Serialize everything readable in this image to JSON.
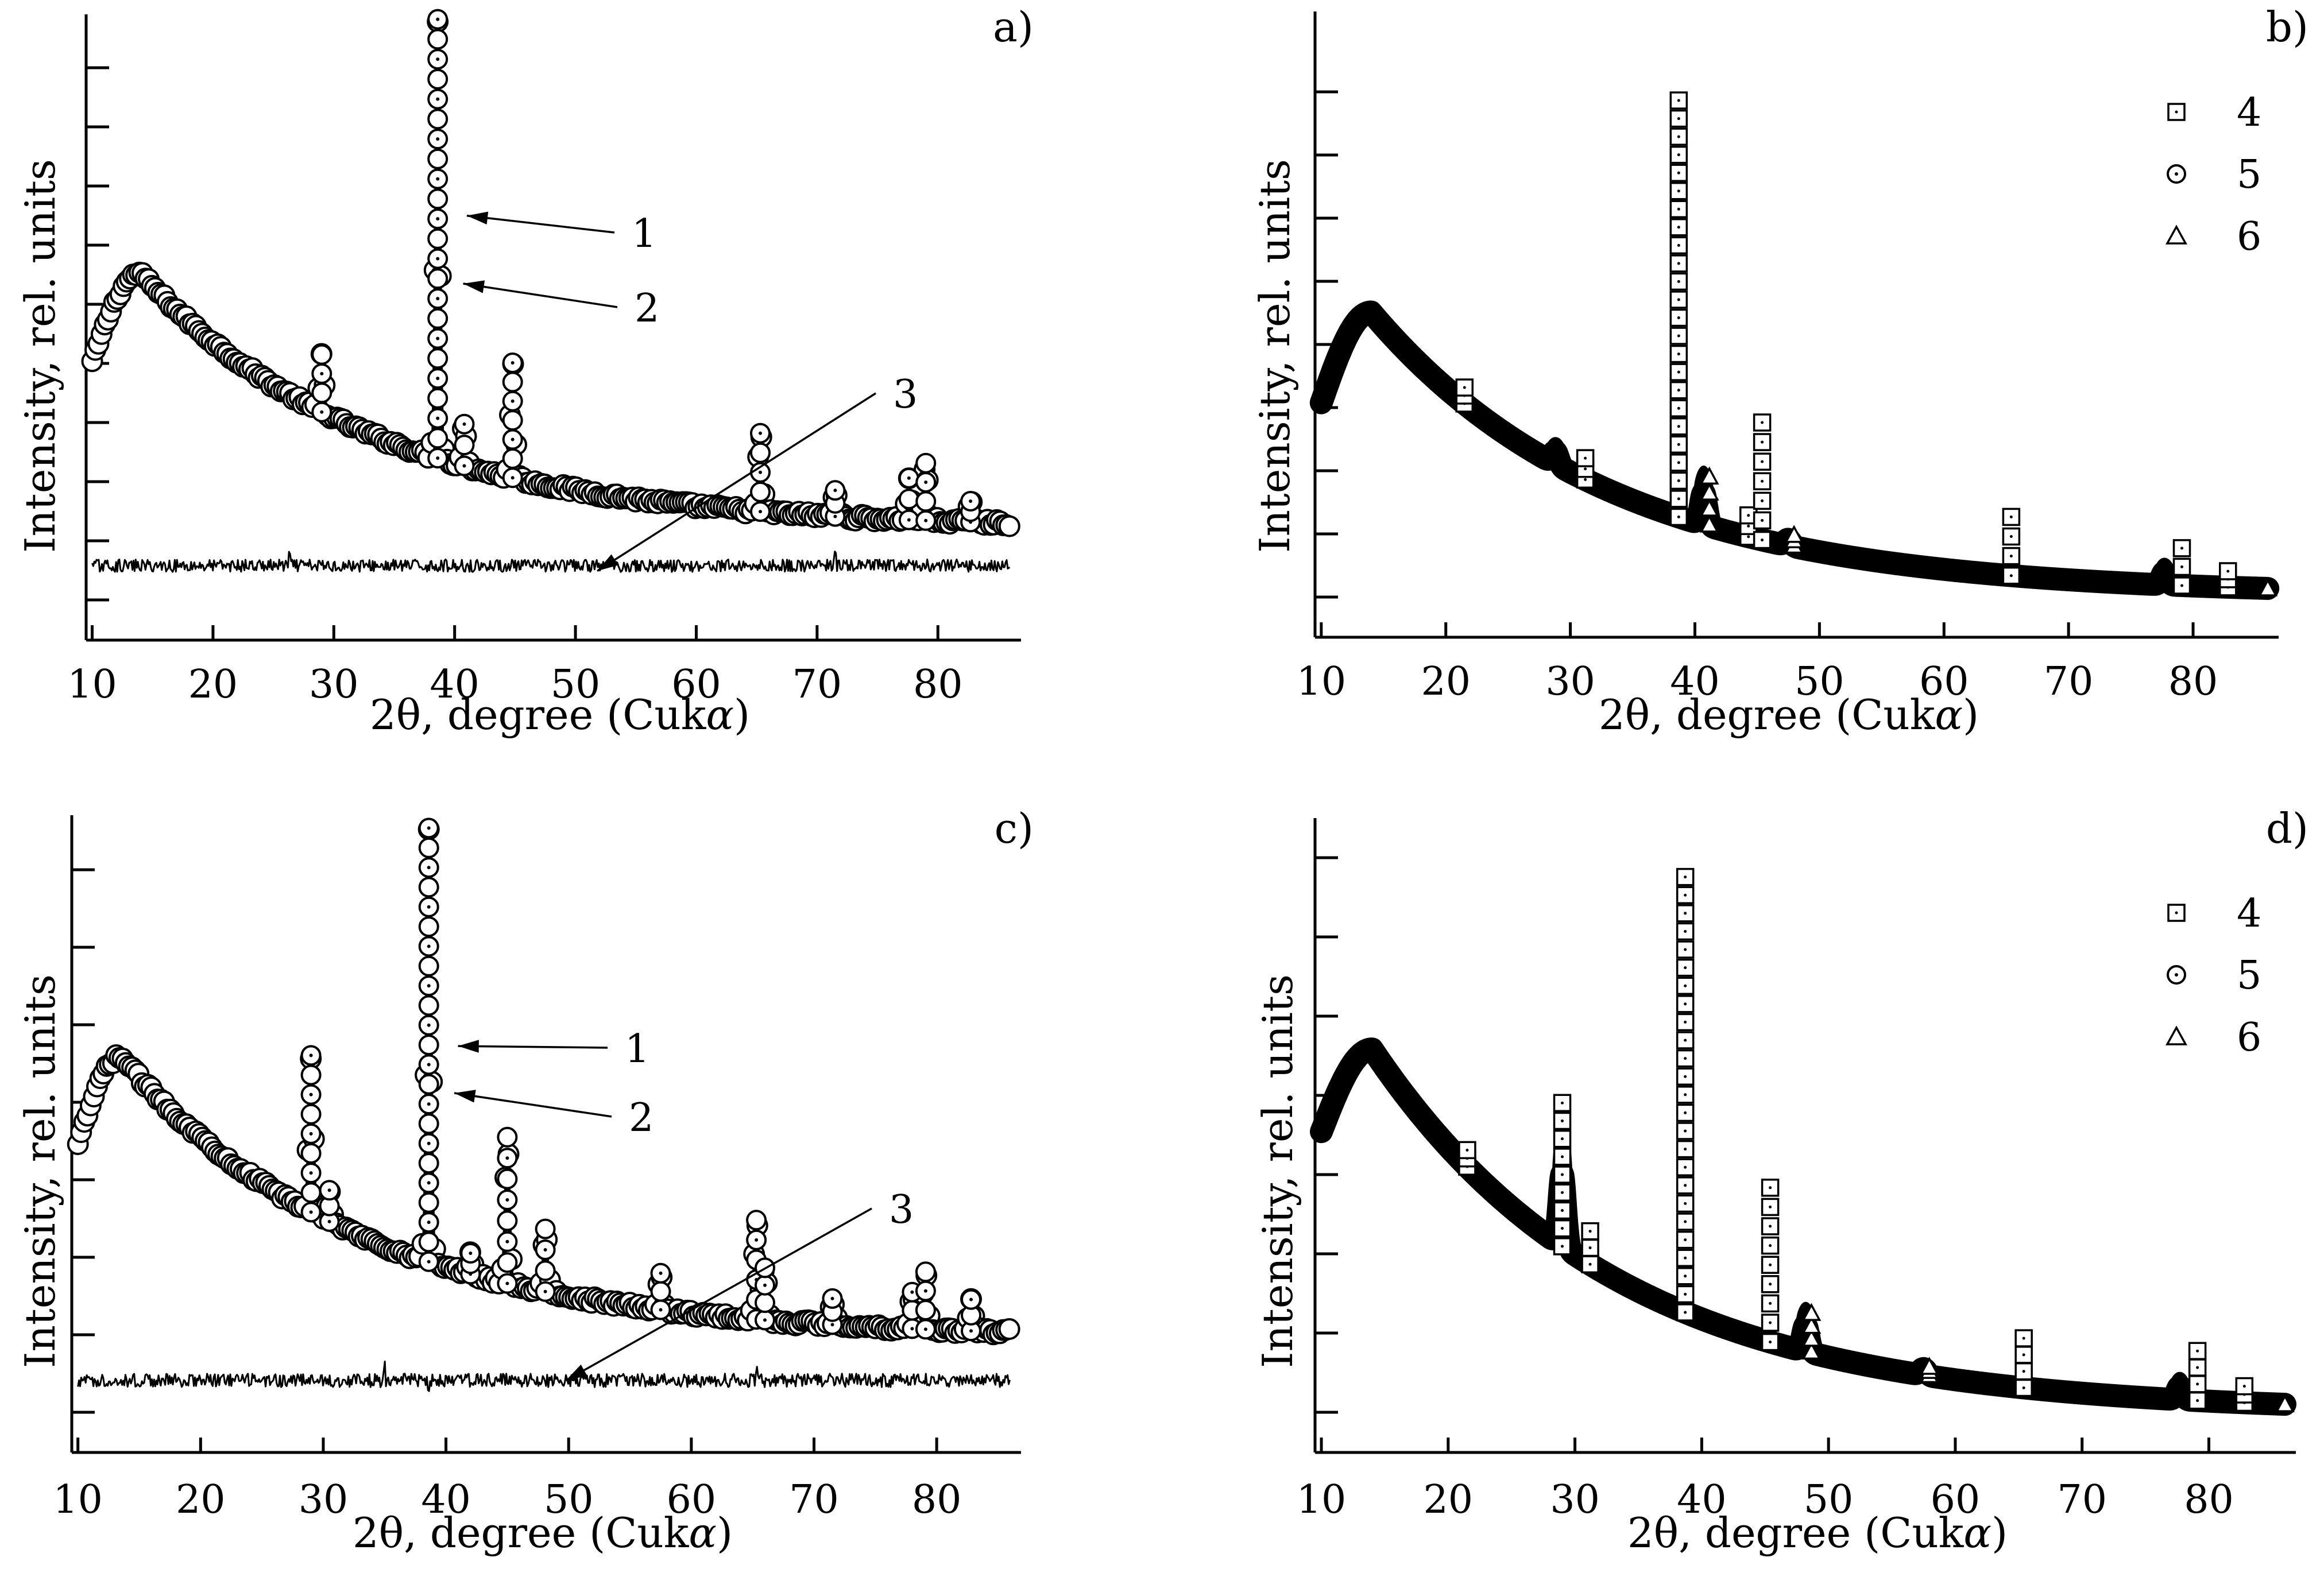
{
  "figure": {
    "panels": [
      {
        "id": "a",
        "label": "a)",
        "xlabel_prefix": "2θ, degree (Cuk",
        "xlabel_symbol": "α",
        "xlabel_suffix": ")",
        "ylabel": "Intensity, rel. units",
        "xticks": [
          "10",
          "20",
          "30",
          "40",
          "50",
          "60",
          "70",
          "80"
        ],
        "legend": [],
        "callouts": [
          {
            "text": "1",
            "target_series": "1",
            "x": 39.2,
            "y": 0.73
          },
          {
            "text": "2",
            "target_series": "2",
            "x": 38.9,
            "y": 0.6
          },
          {
            "text": "3",
            "target_series": "3",
            "x": 50.0,
            "y": 0.05
          }
        ]
      },
      {
        "id": "b",
        "label": "b)",
        "xlabel_prefix": "2θ, degree (Cuk",
        "xlabel_symbol": "α",
        "xlabel_suffix": ")",
        "ylabel": "Intensity, rel. units",
        "xticks": [
          "10",
          "20",
          "30",
          "40",
          "50",
          "60",
          "70",
          "80"
        ],
        "legend": [
          {
            "marker": "square",
            "text": "4"
          },
          {
            "marker": "circle",
            "text": "5"
          },
          {
            "marker": "triangle",
            "text": "6"
          }
        ],
        "callouts": []
      },
      {
        "id": "c",
        "label": "c)",
        "xlabel_prefix": "2θ, degree (Cuk",
        "xlabel_symbol": "α",
        "xlabel_suffix": ")",
        "ylabel": "Intensity, rel. units",
        "xticks": [
          "10",
          "20",
          "30",
          "40",
          "50",
          "60",
          "70",
          "80"
        ],
        "legend": [],
        "callouts": [
          {
            "text": "1",
            "target_series": "1",
            "x": 39.2,
            "y": 0.69
          },
          {
            "text": "2",
            "target_series": "2",
            "x": 38.9,
            "y": 0.6
          },
          {
            "text": "3",
            "target_series": "3",
            "x": 48.0,
            "y": 0.05
          }
        ]
      },
      {
        "id": "d",
        "label": "d)",
        "xlabel_prefix": "2θ, degree (Cuk",
        "xlabel_symbol": "α",
        "xlabel_suffix": ")",
        "ylabel": "Intensity, rel. units",
        "xticks": [
          "10",
          "20",
          "30",
          "40",
          "50",
          "60",
          "70",
          "80"
        ],
        "legend": [
          {
            "marker": "square",
            "text": "4"
          },
          {
            "marker": "circle",
            "text": "5"
          },
          {
            "marker": "triangle",
            "text": "6"
          }
        ],
        "callouts": []
      }
    ]
  },
  "chart_data": [
    {
      "panel": "a",
      "type": "scatter",
      "title": "a)",
      "xlabel": "2θ, degree (Cukα)",
      "ylabel": "Intensity, rel. units",
      "xlim": [
        9.5,
        86.5
      ],
      "ylim": [
        0,
        1.0
      ],
      "x_ticks": [
        10,
        20,
        30,
        40,
        50,
        60,
        70,
        80
      ],
      "y_ticks": "unlabeled",
      "grid": false,
      "background": {
        "x0": 10,
        "x1": 86,
        "peak_x": 14,
        "peak_y": 0.62,
        "start_y": 0.45,
        "tail_y": 0.13
      },
      "series": [
        {
          "name": "1",
          "style": "open-circle",
          "peaks": [
            [
              29.0,
              0.11
            ],
            [
              38.6,
              0.84
            ],
            [
              40.8,
              0.08
            ],
            [
              44.8,
              0.22
            ],
            [
              65.3,
              0.15
            ],
            [
              71.5,
              0.05
            ],
            [
              77.6,
              0.08
            ],
            [
              79.0,
              0.11
            ],
            [
              82.7,
              0.04
            ]
          ]
        },
        {
          "name": "2",
          "style": "dotted-circle",
          "peaks": [
            [
              29.0,
              0.09
            ],
            [
              38.6,
              0.66
            ],
            [
              40.8,
              0.06
            ],
            [
              44.8,
              0.18
            ],
            [
              65.3,
              0.12
            ],
            [
              71.5,
              0.04
            ],
            [
              77.6,
              0.06
            ],
            [
              79.0,
              0.09
            ],
            [
              82.7,
              0.03
            ]
          ]
        },
        {
          "name": "3",
          "style": "noisy-line",
          "baseline_y": 0.06,
          "noise": 0.012,
          "spikes": [
            [
              71.5,
              0.035
            ],
            [
              26.3,
              0.02
            ]
          ]
        }
      ]
    },
    {
      "panel": "b",
      "type": "scatter",
      "title": "b)",
      "xlabel": "2θ, degree (Cukα)",
      "ylabel": "Intensity, rel. units",
      "xlim": [
        9.5,
        86.5
      ],
      "ylim": [
        0,
        1.0
      ],
      "x_ticks": [
        10,
        20,
        30,
        40,
        50,
        60,
        70,
        80
      ],
      "y_ticks": "unlabeled",
      "grid": false,
      "background": {
        "x0": 10,
        "x1": 86,
        "peak_x": 14,
        "peak_y": 0.55,
        "start_y": 0.38,
        "tail_y": 0.02
      },
      "series": [
        {
          "name": "4",
          "style": "square",
          "peaks": [
            [
              21.5,
              0.03
            ],
            [
              31.2,
              0.04
            ],
            [
              38.7,
              0.78
            ],
            [
              44.3,
              0.04
            ],
            [
              45.4,
              0.22
            ],
            [
              65.4,
              0.11
            ],
            [
              79.1,
              0.07
            ],
            [
              82.8,
              0.03
            ]
          ]
        },
        {
          "name": "5",
          "style": "circle",
          "peaks": [
            [
              28.8,
              0.04
            ],
            [
              40.7,
              0.1
            ],
            [
              47.5,
              0.02
            ],
            [
              77.7,
              0.04
            ]
          ]
        },
        {
          "name": "6",
          "style": "triangle",
          "peaks": [
            [
              40.7,
              0.09
            ],
            [
              47.5,
              0.02
            ]
          ]
        }
      ]
    },
    {
      "panel": "c",
      "type": "scatter",
      "title": "c)",
      "xlabel": "2θ, degree (Cukα)",
      "ylabel": "Intensity, rel. units",
      "xlim": [
        9.5,
        86.5
      ],
      "ylim": [
        0,
        1.0
      ],
      "x_ticks": [
        10,
        20,
        30,
        40,
        50,
        60,
        70,
        80
      ],
      "y_ticks": "unlabeled",
      "grid": false,
      "background": {
        "x0": 10,
        "x1": 86,
        "peak_x": 13.5,
        "peak_y": 0.67,
        "start_y": 0.5,
        "tail_y": 0.13
      },
      "series": [
        {
          "name": "1",
          "style": "open-circle",
          "peaks": [
            [
              29.0,
              0.3
            ],
            [
              30.5,
              0.06
            ],
            [
              38.6,
              0.83
            ],
            [
              42.0,
              0.04
            ],
            [
              45.0,
              0.28
            ],
            [
              48.1,
              0.12
            ],
            [
              57.5,
              0.07
            ],
            [
              65.3,
              0.19
            ],
            [
              66.0,
              0.1
            ],
            [
              71.5,
              0.05
            ],
            [
              78.0,
              0.07
            ],
            [
              79.1,
              0.11
            ],
            [
              82.8,
              0.06
            ]
          ]
        },
        {
          "name": "2",
          "style": "dotted-circle",
          "peaks": [
            [
              29.0,
              0.25
            ],
            [
              38.6,
              0.66
            ],
            [
              45.0,
              0.22
            ],
            [
              48.1,
              0.09
            ],
            [
              65.3,
              0.15
            ],
            [
              79.1,
              0.09
            ]
          ]
        },
        {
          "name": "3",
          "style": "noisy-line",
          "baseline_y": 0.05,
          "noise": 0.013,
          "spikes": [
            [
              35.0,
              0.03
            ],
            [
              38.6,
              -0.03
            ],
            [
              65.3,
              0.025
            ]
          ]
        }
      ]
    },
    {
      "panel": "d",
      "type": "scatter",
      "title": "d)",
      "xlabel": "2θ, degree (Cukα)",
      "ylabel": "Intensity, rel. units",
      "xlim": [
        9.5,
        86.5
      ],
      "ylim": [
        0,
        1.0
      ],
      "x_ticks": [
        10,
        20,
        30,
        40,
        50,
        60,
        70,
        80
      ],
      "y_ticks": "unlabeled",
      "grid": false,
      "background": {
        "x0": 10,
        "x1": 86,
        "peak_x": 14,
        "peak_y": 0.68,
        "start_y": 0.53,
        "tail_y": 0.02
      },
      "series": [
        {
          "name": "4",
          "style": "square",
          "peaks": [
            [
              21.5,
              0.03
            ],
            [
              29.0,
              0.26
            ],
            [
              31.2,
              0.06
            ],
            [
              38.7,
              0.79
            ],
            [
              45.4,
              0.28
            ],
            [
              65.4,
              0.09
            ],
            [
              79.1,
              0.09
            ],
            [
              82.8,
              0.03
            ]
          ]
        },
        {
          "name": "5",
          "style": "circle",
          "peaks": [
            [
              29.0,
              0.22
            ],
            [
              48.2,
              0.08
            ],
            [
              57.5,
              0.02
            ],
            [
              77.7,
              0.04
            ]
          ]
        },
        {
          "name": "6",
          "style": "triangle",
          "peaks": [
            [
              48.2,
              0.07
            ],
            [
              57.5,
              0.015
            ]
          ]
        }
      ]
    }
  ]
}
